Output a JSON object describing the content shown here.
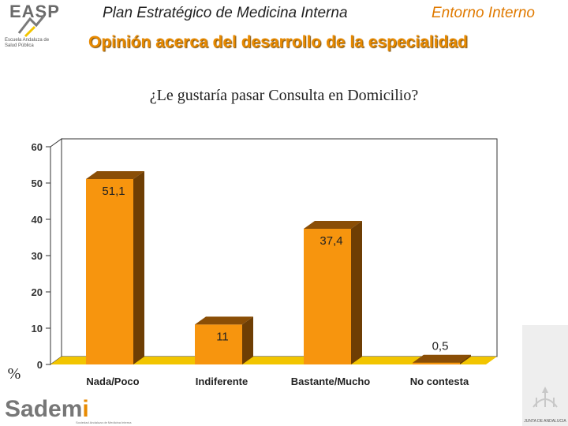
{
  "header": {
    "title": "Plan Estratégico de Medicina Interna",
    "section": "Entorno Interno",
    "page_title": "Opinión acerca del desarrollo de la especialidad"
  },
  "logos": {
    "easp_mark": "EASP",
    "easp_subtitle": "Escuela Andaluza de Salud Pública",
    "sademi_word_a": "Sadem",
    "sademi_word_b": "i",
    "sademi_tagline": "Sociedad Andaluza de Medicina Interna",
    "junta_text": "JUNTA DE ANDALUCIA"
  },
  "chart_data": {
    "type": "bar",
    "title": "¿Le gustaría pasar Consulta en Domicilio?",
    "categories": [
      "Nada/Poco",
      "Indiferente",
      "Bastante/Mucho",
      "No contesta"
    ],
    "values": [
      51.1,
      11,
      37.4,
      0.5
    ],
    "data_labels": [
      "51,1",
      "11",
      "37,4",
      "0,5"
    ],
    "ylabel": "%",
    "ylim": [
      0,
      60
    ],
    "yticks": [
      0,
      10,
      20,
      30,
      40,
      50,
      60
    ],
    "grid": false,
    "legend": "none",
    "colors": {
      "bar_front": "#f7950e",
      "bar_top": "#8a4e06",
      "bar_side": "#6e3e04",
      "floor": "#f2c500",
      "frame": "#333333",
      "tick_label": "#333333"
    }
  }
}
